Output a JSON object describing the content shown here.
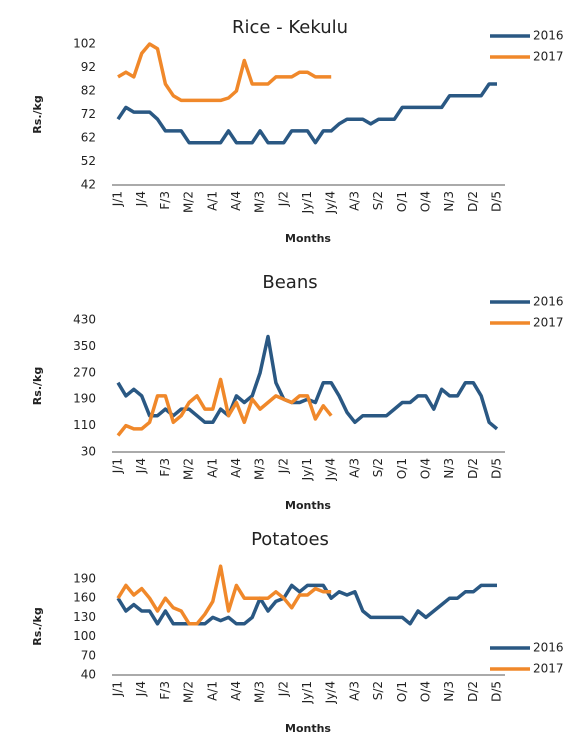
{
  "chart_data": [
    {
      "type": "line",
      "title": "Rice - Kekulu",
      "y_label": "Rs./kg",
      "x_label": "Months",
      "categories": [
        "J/1",
        null,
        null,
        "J/4",
        null,
        null,
        "F/3",
        null,
        null,
        "M/2",
        null,
        null,
        "A/1",
        null,
        null,
        "A/4",
        null,
        null,
        "M/3",
        null,
        null,
        "J/2",
        null,
        null,
        "Jy/1",
        null,
        null,
        "Jy/4",
        null,
        null,
        "A/3",
        null,
        null,
        "S/2",
        null,
        null,
        "O/1",
        null,
        null,
        "O/4",
        null,
        null,
        "N/3",
        null,
        null,
        "D/2",
        null,
        null,
        "D/5"
      ],
      "series": [
        {
          "name": "2016",
          "color": "#2a5883",
          "values": [
            70,
            75,
            73,
            73,
            73,
            70,
            65,
            65,
            65,
            60,
            60,
            60,
            60,
            60,
            65,
            60,
            60,
            60,
            65,
            60,
            60,
            60,
            65,
            65,
            65,
            60,
            65,
            65,
            68,
            70,
            70,
            70,
            68,
            70,
            70,
            70,
            75,
            75,
            75,
            75,
            75,
            75,
            80,
            80,
            80,
            80,
            80,
            85,
            85
          ]
        },
        {
          "name": "2017",
          "color": "#f0882a",
          "values": [
            88,
            90,
            88,
            98,
            102,
            100,
            85,
            80,
            78,
            78,
            78,
            78,
            78,
            78,
            79,
            82,
            95,
            85,
            85,
            85,
            88,
            88,
            88,
            90,
            90,
            88,
            88,
            88,
            null,
            null,
            null,
            null,
            null,
            null,
            null,
            null,
            null,
            null,
            null,
            null,
            null,
            null,
            null,
            null,
            null,
            null,
            null,
            null,
            null
          ]
        }
      ],
      "ylim": [
        42,
        102
      ],
      "yticks": [
        42,
        52,
        62,
        72,
        82,
        92,
        102
      ],
      "legend": "upper right"
    },
    {
      "type": "line",
      "title": "Beans",
      "y_label": "Rs./kg",
      "x_label": "Months",
      "categories": [
        "J/1",
        null,
        null,
        "J/4",
        null,
        null,
        "F/3",
        null,
        null,
        "M/2",
        null,
        null,
        "A/1",
        null,
        null,
        "A/4",
        null,
        null,
        "M/3",
        null,
        null,
        "J/2",
        null,
        null,
        "Jy/1",
        null,
        null,
        "Jy/4",
        null,
        null,
        "A/3",
        null,
        null,
        "S/2",
        null,
        null,
        "O/1",
        null,
        null,
        "O/4",
        null,
        null,
        "N/3",
        null,
        null,
        "D/2",
        null,
        null,
        "D/5"
      ],
      "series": [
        {
          "name": "2016",
          "color": "#2a5883",
          "values": [
            240,
            200,
            220,
            200,
            140,
            140,
            160,
            140,
            160,
            160,
            140,
            120,
            120,
            160,
            140,
            200,
            180,
            200,
            270,
            380,
            240,
            190,
            180,
            180,
            190,
            180,
            240,
            240,
            200,
            150,
            120,
            140,
            140,
            140,
            140,
            160,
            180,
            180,
            200,
            200,
            160,
            220,
            200,
            200,
            240,
            240,
            200,
            120,
            100
          ]
        },
        {
          "name": "2017",
          "color": "#f0882a",
          "values": [
            80,
            110,
            100,
            100,
            120,
            200,
            200,
            120,
            140,
            180,
            200,
            160,
            160,
            250,
            140,
            180,
            120,
            190,
            160,
            180,
            200,
            190,
            180,
            200,
            200,
            130,
            170,
            140,
            null,
            null,
            null,
            null,
            null,
            null,
            null,
            null,
            null,
            null,
            null,
            null,
            null,
            null,
            null,
            null,
            null,
            null,
            null,
            null,
            null
          ]
        }
      ],
      "ylim": [
        30,
        430
      ],
      "yticks": [
        30,
        110,
        190,
        270,
        350,
        430
      ],
      "legend": "upper right"
    },
    {
      "type": "line",
      "title": "Potatoes",
      "y_label": "Rs./kg",
      "x_label": "Months",
      "categories": [
        "J/1",
        null,
        null,
        "J/4",
        null,
        null,
        "F/3",
        null,
        null,
        "M/2",
        null,
        null,
        "A/1",
        null,
        null,
        "A/4",
        null,
        null,
        "M/3",
        null,
        null,
        "J/2",
        null,
        null,
        "Jy/1",
        null,
        null,
        "Jy/4",
        null,
        null,
        "A/3",
        null,
        null,
        "S/2",
        null,
        null,
        "O/1",
        null,
        null,
        "O/4",
        null,
        null,
        "N/3",
        null,
        null,
        "D/2",
        null,
        null,
        "D/5"
      ],
      "series": [
        {
          "name": "2016",
          "color": "#2a5883",
          "values": [
            160,
            140,
            150,
            140,
            140,
            120,
            140,
            120,
            120,
            120,
            120,
            120,
            130,
            125,
            130,
            120,
            120,
            130,
            160,
            140,
            155,
            160,
            180,
            170,
            180,
            180,
            180,
            160,
            170,
            165,
            170,
            140,
            130,
            130,
            130,
            130,
            130,
            120,
            140,
            130,
            140,
            150,
            160,
            160,
            170,
            170,
            180,
            180,
            180
          ]
        },
        {
          "name": "2017",
          "color": "#f0882a",
          "values": [
            160,
            180,
            165,
            175,
            160,
            140,
            160,
            145,
            140,
            120,
            120,
            135,
            155,
            210,
            140,
            180,
            160,
            160,
            160,
            160,
            170,
            160,
            145,
            165,
            165,
            175,
            170,
            170,
            null,
            null,
            null,
            null,
            null,
            null,
            null,
            null,
            null,
            null,
            null,
            null,
            null,
            null,
            null,
            null,
            null,
            null,
            null,
            null,
            null
          ]
        }
      ],
      "ylim": [
        40,
        215
      ],
      "yticks": [
        40,
        70,
        100,
        130,
        160,
        190
      ],
      "legend": "lower right"
    }
  ]
}
